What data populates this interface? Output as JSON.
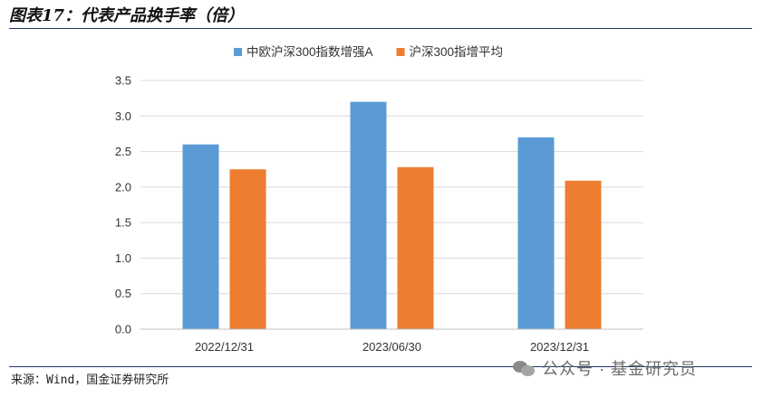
{
  "header": {
    "title": "图表17：代表产品换手率（倍）"
  },
  "footer": {
    "source": "来源：Wind，国金证券研究所",
    "watermark": "公众号 · 基金研究员"
  },
  "chart_data": {
    "type": "bar",
    "categories": [
      "2022/12/31",
      "2023/06/30",
      "2023/12/31"
    ],
    "series": [
      {
        "name": "中欧沪深300指数增强A",
        "color": "#5b9bd5",
        "values": [
          2.6,
          3.2,
          2.7
        ]
      },
      {
        "name": "沪深300指增平均",
        "color": "#ed7d31",
        "values": [
          2.25,
          2.28,
          2.09
        ]
      }
    ],
    "ylim": [
      0,
      3.5
    ],
    "yticks": [
      "0.0",
      "0.5",
      "1.0",
      "1.5",
      "2.0",
      "2.5",
      "3.0",
      "3.5"
    ],
    "grid": true,
    "legend": "top"
  }
}
